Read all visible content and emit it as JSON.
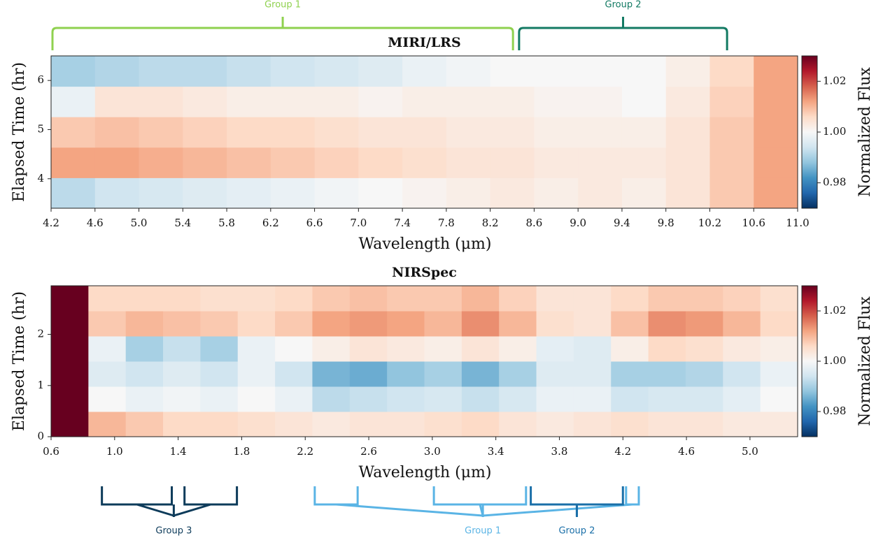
{
  "chart_data": [
    {
      "type": "heatmap",
      "title": "MIRI/LRS",
      "x_label": "Wavelength (μm)",
      "y_label": "Elapsed Time (hr)",
      "colorbar_label": "Normalized Flux",
      "colormap": "RdBu_r",
      "xlim": [
        4.2,
        11.0
      ],
      "ylim": [
        3.4,
        6.5
      ],
      "zlim": [
        0.97,
        1.03
      ],
      "xticks": [
        4.2,
        4.6,
        {
          "value": 5.0,
          "label": "5.0"
        },
        5.4,
        5.8,
        6.2,
        6.6,
        {
          "value": 7.0,
          "label": "7.0"
        },
        7.4,
        7.8,
        8.2,
        8.6,
        {
          "value": 9.0,
          "label": "9.0"
        },
        9.4,
        9.8,
        10.2,
        10.6,
        {
          "value": 11.0,
          "label": "11.0"
        }
      ],
      "yticks": [
        4,
        5,
        6
      ],
      "zticks": [
        {
          "value": 0.98,
          "label": "0.98"
        },
        {
          "value": 1.0,
          "label": "1.00"
        },
        {
          "value": 1.02,
          "label": "1.02"
        }
      ],
      "z": [
        [
          0.992,
          0.994,
          0.995,
          0.996,
          0.997,
          0.998,
          0.999,
          1.0,
          1.001,
          1.002,
          1.003,
          1.002,
          1.003,
          1.002,
          1.004,
          1.008,
          1.012
        ],
        [
          1.012,
          1.012,
          1.011,
          1.01,
          1.009,
          1.008,
          1.007,
          1.006,
          1.005,
          1.004,
          1.004,
          1.003,
          1.003,
          1.003,
          1.004,
          1.008,
          1.012
        ],
        [
          1.008,
          1.009,
          1.008,
          1.007,
          1.006,
          1.006,
          1.005,
          1.004,
          1.004,
          1.003,
          1.003,
          1.002,
          1.002,
          1.002,
          1.004,
          1.008,
          1.012
        ],
        [
          0.998,
          1.004,
          1.004,
          1.003,
          1.002,
          1.002,
          1.002,
          1.001,
          1.002,
          1.002,
          1.002,
          1.001,
          1.001,
          1.0,
          1.003,
          1.007,
          1.012
        ],
        [
          0.99,
          0.991,
          0.992,
          0.992,
          0.993,
          0.994,
          0.995,
          0.996,
          0.998,
          0.999,
          1.0,
          1.0,
          1.0,
          1.0,
          1.002,
          1.006,
          1.012
        ]
      ],
      "annotations": [
        {
          "text": "Group 1",
          "color": "#8fd14f",
          "ranges": [
            [
              4.2,
              8.42
            ]
          ]
        },
        {
          "text": "Group 2",
          "color": "#137a63",
          "ranges": [
            [
              8.45,
              10.37
            ]
          ]
        }
      ]
    },
    {
      "type": "heatmap",
      "title": "NIRSpec",
      "x_label": "Wavelength (μm)",
      "y_label": "Elapsed Time (hr)",
      "colorbar_label": "Normalized Flux",
      "colormap": "RdBu_r",
      "xlim": [
        0.6,
        5.3
      ],
      "ylim": [
        0,
        2.95
      ],
      "zlim": [
        0.97,
        1.03
      ],
      "xticks": [
        0.6,
        {
          "value": 1.0,
          "label": "1.0"
        },
        1.4,
        1.8,
        2.2,
        2.6,
        {
          "value": 3.0,
          "label": "3.0"
        },
        3.4,
        3.8,
        4.2,
        4.6,
        {
          "value": 5.0,
          "label": "5.0"
        }
      ],
      "yticks": [
        0,
        1,
        2
      ],
      "zticks": [
        {
          "value": 0.98,
          "label": "0.98"
        },
        {
          "value": 1.0,
          "label": "1.00"
        },
        {
          "value": 1.02,
          "label": "1.02"
        }
      ],
      "z": [
        [
          1.03,
          1.01,
          1.008,
          1.006,
          1.006,
          1.005,
          1.004,
          1.003,
          1.004,
          1.004,
          1.005,
          1.006,
          1.004,
          1.003,
          1.004,
          1.005,
          1.004,
          1.004,
          1.003,
          1.003
        ],
        [
          1.03,
          1.0,
          0.998,
          0.999,
          0.998,
          1.0,
          0.998,
          0.992,
          0.993,
          0.994,
          0.995,
          0.993,
          0.995,
          0.998,
          0.998,
          0.994,
          0.995,
          0.995,
          0.997,
          1.0
        ],
        [
          1.03,
          0.996,
          0.994,
          0.996,
          0.994,
          0.998,
          0.994,
          0.986,
          0.985,
          0.988,
          0.99,
          0.986,
          0.99,
          0.996,
          0.996,
          0.99,
          0.99,
          0.991,
          0.994,
          0.998
        ],
        [
          1.03,
          0.998,
          0.99,
          0.993,
          0.99,
          0.998,
          1.0,
          1.002,
          1.004,
          1.003,
          1.002,
          1.004,
          1.002,
          0.997,
          0.996,
          1.002,
          1.006,
          1.005,
          1.003,
          1.002
        ],
        [
          1.03,
          1.008,
          1.01,
          1.009,
          1.008,
          1.006,
          1.008,
          1.012,
          1.013,
          1.012,
          1.01,
          1.014,
          1.01,
          1.005,
          1.004,
          1.009,
          1.014,
          1.013,
          1.01,
          1.006
        ],
        [
          1.03,
          1.006,
          1.006,
          1.006,
          1.005,
          1.005,
          1.006,
          1.008,
          1.009,
          1.008,
          1.008,
          1.01,
          1.007,
          1.004,
          1.004,
          1.006,
          1.008,
          1.008,
          1.007,
          1.005
        ]
      ],
      "annotations": [
        {
          "text": "Group 3",
          "color": "#0d3b5a",
          "ranges": [
            [
              0.92,
              1.36
            ],
            [
              1.44,
              1.77
            ]
          ]
        },
        {
          "text": "Group 1",
          "color": "#5ab4e5",
          "ranges": [
            [
              2.26,
              2.53
            ],
            [
              3.01,
              3.59
            ],
            [
              4.22,
              4.3
            ]
          ]
        },
        {
          "text": "Group 2",
          "color": "#1a6fa8",
          "ranges": [
            [
              3.62,
              4.2
            ]
          ]
        }
      ]
    }
  ]
}
